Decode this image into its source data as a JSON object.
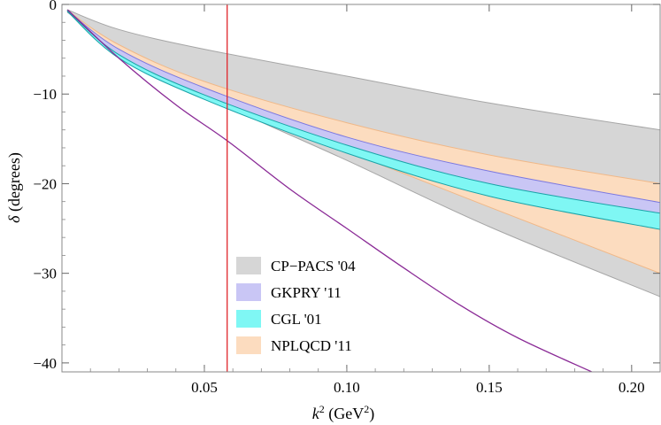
{
  "chart_data": {
    "type": "area",
    "title": "",
    "xlabel_main": "k",
    "xlabel_sup": "2",
    "xlabel_unit_pre": " (GeV",
    "xlabel_unit_sup": "2",
    "xlabel_unit_post": ")",
    "ylabel_sym": "δ",
    "ylabel_rest": " (degrees)",
    "xlim": [
      0.0,
      0.21
    ],
    "ylim": [
      -41,
      0
    ],
    "x_ticks": [
      0.05,
      0.1,
      0.15,
      0.2
    ],
    "x_tick_labels": [
      "0.05",
      "0.10",
      "0.15",
      "0.20"
    ],
    "y_ticks": [
      0,
      -10,
      -20,
      -30,
      -40
    ],
    "y_tick_labels": [
      "0",
      "−10",
      "−20",
      "−30",
      "−40"
    ],
    "vertical_line": {
      "x": 0.058,
      "color": "#e0242a"
    },
    "legend": {
      "placement": "bottom-center",
      "entries": [
        {
          "label": "CP−PACS '04",
          "color": "#d6d6d6"
        },
        {
          "label": "GKPRY '11",
          "color": "#c9c6f5"
        },
        {
          "label": "CGL '01",
          "color": "#7ff7f4"
        },
        {
          "label": "NPLQCD '11",
          "color": "#fcdcbf"
        }
      ]
    },
    "bands": [
      {
        "name": "CP-PACS '04",
        "fill": "#d6d6d6",
        "stroke": "#a6a6a6",
        "x": [
          0.002,
          0.02,
          0.05,
          0.1,
          0.15,
          0.21
        ],
        "upper": [
          -0.6,
          -2.8,
          -5.0,
          -8.0,
          -11.0,
          -14.0
        ],
        "lower": [
          -0.9,
          -4.8,
          -10.2,
          -17.4,
          -24.8,
          -32.6
        ]
      },
      {
        "name": "NPLQCD '11",
        "fill": "#fcdcbf",
        "stroke": "#f0b888",
        "x": [
          0.002,
          0.02,
          0.05,
          0.1,
          0.15,
          0.21
        ],
        "upper": [
          -0.7,
          -4.5,
          -8.6,
          -13.2,
          -16.8,
          -20.0
        ],
        "lower": [
          -0.8,
          -5.6,
          -10.4,
          -16.4,
          -22.6,
          -30.0
        ]
      },
      {
        "name": "GKPRY '11",
        "fill": "#c9c6f5",
        "stroke": "#7b78e0",
        "x": [
          0.002,
          0.02,
          0.05,
          0.1,
          0.15,
          0.21
        ],
        "upper": [
          -0.7,
          -5.0,
          -9.3,
          -14.8,
          -18.6,
          -22.1
        ],
        "lower": [
          -0.8,
          -5.8,
          -10.2,
          -15.9,
          -20.3,
          -24.2
        ]
      },
      {
        "name": "CGL '01",
        "fill": "#7ff7f4",
        "stroke": "#1aa3a8",
        "x": [
          0.002,
          0.02,
          0.05,
          0.1,
          0.15,
          0.21
        ],
        "upper": [
          -0.7,
          -5.6,
          -10.1,
          -15.7,
          -20.0,
          -23.3
        ],
        "lower": [
          -0.8,
          -6.0,
          -10.6,
          -16.6,
          -21.4,
          -25.1
        ]
      }
    ],
    "curve": {
      "name": "purple curve",
      "color": "#8a2a96",
      "x": [
        0.002,
        0.02,
        0.04,
        0.058,
        0.08,
        0.1,
        0.12,
        0.14,
        0.16,
        0.186
      ],
      "y": [
        -0.6,
        -6.0,
        -11.2,
        -15.2,
        -20.6,
        -25.0,
        -29.4,
        -33.6,
        -37.2,
        -41.0
      ]
    }
  }
}
